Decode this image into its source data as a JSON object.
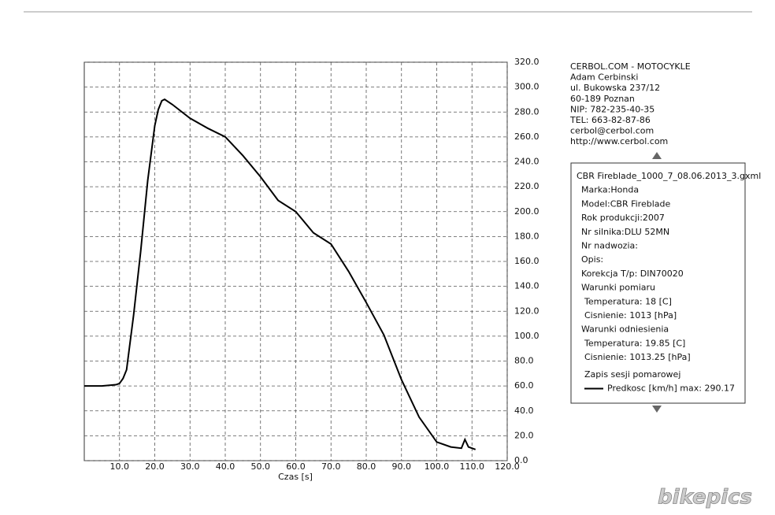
{
  "chart_data": {
    "type": "line",
    "x_label": "Czas [s]",
    "x": [
      0,
      5,
      9,
      10,
      11,
      12,
      14,
      16,
      18,
      20,
      21,
      22,
      22.8,
      25,
      30,
      35,
      40,
      45,
      50,
      55,
      60,
      65,
      70,
      75,
      80,
      85,
      90,
      95,
      100,
      104,
      107,
      108,
      109,
      110,
      111
    ],
    "series": [
      {
        "name": "Predkosc [km/h] max: 290.17",
        "color": "#000000",
        "values": [
          60,
          60,
          61,
          62,
          66,
          73,
          117,
          168,
          225,
          269,
          282,
          289,
          290.17,
          286,
          275,
          267,
          260,
          245,
          228,
          209,
          200,
          183,
          174,
          152,
          127,
          101,
          65,
          35,
          15,
          11,
          10,
          17,
          11,
          10,
          9
        ]
      }
    ],
    "xlim": [
      0,
      120
    ],
    "ylim": [
      0,
      320
    ],
    "xticks": [
      {
        "value": 10,
        "label": "10.0"
      },
      {
        "value": 20,
        "label": "20.0"
      },
      {
        "value": 30,
        "label": "30.0"
      },
      {
        "value": 40,
        "label": "40.0"
      },
      {
        "value": 50,
        "label": "50.0"
      },
      {
        "value": 60,
        "label": "60.0"
      },
      {
        "value": 70,
        "label": "70.0"
      },
      {
        "value": 80,
        "label": "80.0"
      },
      {
        "value": 90,
        "label": "90.0"
      },
      {
        "value": 100,
        "label": "100.0"
      },
      {
        "value": 110,
        "label": "110.0"
      },
      {
        "value": 120,
        "label": "120.0"
      }
    ],
    "yticks": [
      {
        "value": 0,
        "label": "0.0"
      },
      {
        "value": 20,
        "label": "20.0"
      },
      {
        "value": 40,
        "label": "40.0"
      },
      {
        "value": 60,
        "label": "60.0"
      },
      {
        "value": 80,
        "label": "80.0"
      },
      {
        "value": 100,
        "label": "100.0"
      },
      {
        "value": 120,
        "label": "120.0"
      },
      {
        "value": 140,
        "label": "140.0"
      },
      {
        "value": 160,
        "label": "160.0"
      },
      {
        "value": 180,
        "label": "180.0"
      },
      {
        "value": 200,
        "label": "200.0"
      },
      {
        "value": 220,
        "label": "220.0"
      },
      {
        "value": 240,
        "label": "240.0"
      },
      {
        "value": 260,
        "label": "260.0"
      },
      {
        "value": 280,
        "label": "280.0"
      },
      {
        "value": 300,
        "label": "300.0"
      },
      {
        "value": 320,
        "label": "320.0"
      }
    ],
    "grid": true
  },
  "company": [
    "CERBOL.COM - MOTOCYKLE",
    "Adam Cerbinski",
    "ul. Bukowska 237/12",
    "60-189 Poznan",
    "NIP: 782-235-40-35",
    "TEL: 663-82-87-86",
    "cerbol@cerbol.com",
    "http://www.cerbol.com"
  ],
  "info_panel": {
    "file": "CBR Fireblade_1000_7_08.06.2013_3.gxml",
    "fields": [
      "Marka:Honda",
      "Model:CBR Fireblade",
      "Rok produkcji:2007",
      "Nr silnika:DLU 52MN",
      "Nr nadwozia:",
      "Opis:",
      "Korekcja T/p: DIN70020"
    ],
    "conditions": [
      {
        "title": "Warunki pomiaru",
        "items": [
          "Temperatura: 18 [C]",
          "Cisnienie: 1013 [hPa]"
        ]
      },
      {
        "title": "Warunki odniesienia",
        "items": [
          "Temperatura: 19.85 [C]",
          "Cisnienie: 1013.25 [hPa]"
        ]
      }
    ],
    "session_title": "Zapis sesji pomarowej"
  },
  "watermark": "bikepics"
}
